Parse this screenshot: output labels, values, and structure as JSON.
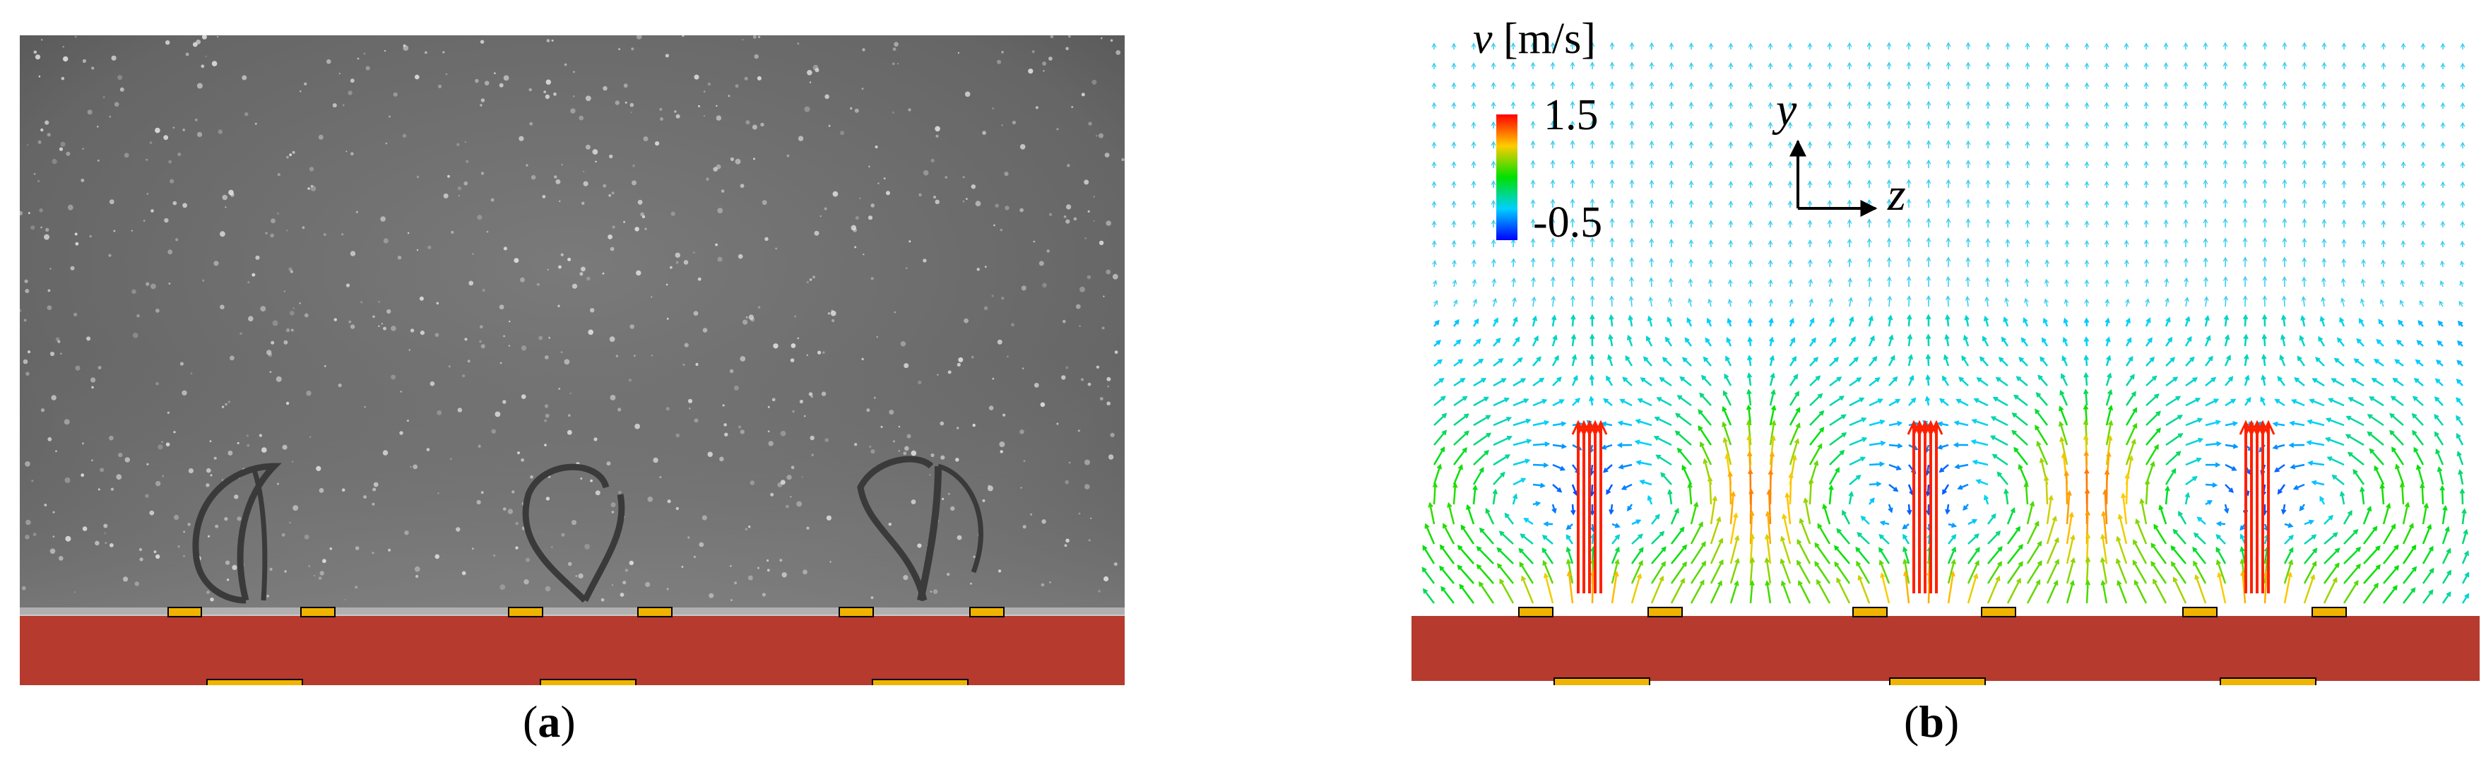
{
  "figure": {
    "panel_a": {
      "caption_letter": "a"
    },
    "panel_b": {
      "caption_letter": "b",
      "colorbar": {
        "variable": "v",
        "unit": "[m/s]",
        "max": "1.5",
        "min": "-0.5",
        "colors": [
          "#ff0000",
          "#ffcc00",
          "#00e000",
          "#00d0ff",
          "#0000ff"
        ]
      },
      "axes": {
        "vertical": "y",
        "horizontal": "z"
      }
    },
    "colors": {
      "substrate": "#b63a2e",
      "electrode": "#f0b400",
      "electrode_edge": "#000000",
      "photo_background": "#6e6e6e"
    }
  }
}
